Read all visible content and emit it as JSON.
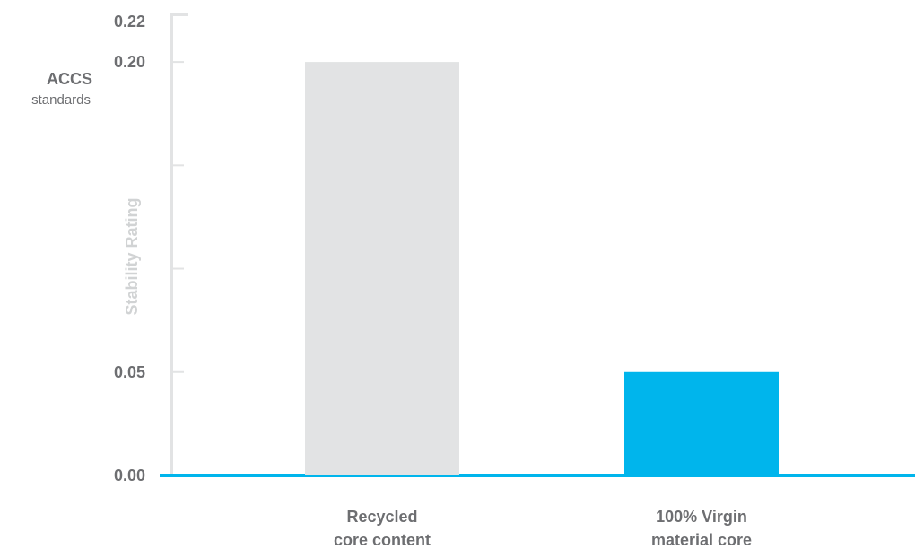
{
  "chart_data": {
    "type": "bar",
    "title": "",
    "xlabel": "",
    "ylabel": "Stability Rating",
    "ylim": [
      0,
      0.22
    ],
    "grid": false,
    "legend": "none",
    "categories": [
      [
        "Recycled",
        "core content"
      ],
      [
        "100% Virgin",
        "material core"
      ]
    ],
    "values": [
      0.2,
      0.05
    ],
    "bar_colors": [
      "#e2e3e4",
      "#00b5ec"
    ],
    "y_tick_labels": [
      {
        "value": 0.0,
        "label": "0.00"
      },
      {
        "value": 0.05,
        "label": "0.05"
      },
      {
        "value": 0.2,
        "label": "0.20"
      },
      {
        "value": 0.22,
        "label": "0.22"
      }
    ],
    "y_ticks_unlabeled": [
      0.1,
      0.15
    ],
    "reference_label": {
      "value": 0.2,
      "title": "ACCS",
      "subtitle": "standards"
    },
    "colors": {
      "axis": "#e2e3e4",
      "baseline": "#00b5ec",
      "text": "#6d6e71",
      "ylabel": "#d1d3d4"
    }
  }
}
